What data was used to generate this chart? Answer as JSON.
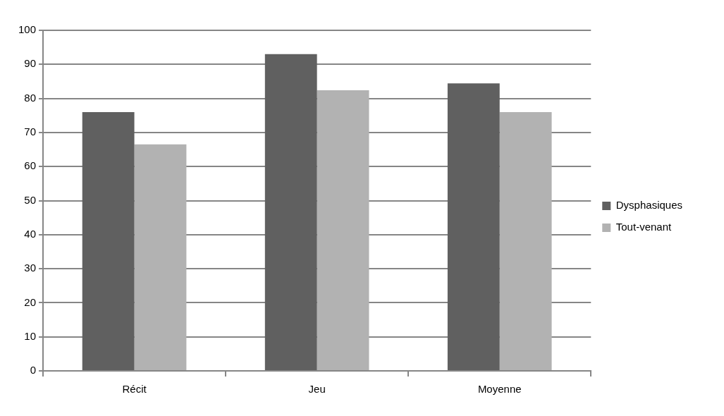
{
  "chart_data": {
    "type": "bar",
    "categories": [
      "Récit",
      "Jeu",
      "Moyenne"
    ],
    "series": [
      {
        "name": "Dysphasiques",
        "color": "#606060",
        "values": [
          76,
          93,
          84.4
        ]
      },
      {
        "name": "Tout-venant",
        "color": "#b2b2b2",
        "values": [
          66.5,
          82.4,
          76
        ]
      }
    ],
    "ylim": [
      0,
      100
    ],
    "yticks": [
      0,
      10,
      20,
      30,
      40,
      50,
      60,
      70,
      80,
      90,
      100
    ],
    "grid": "y",
    "legend": "right"
  }
}
